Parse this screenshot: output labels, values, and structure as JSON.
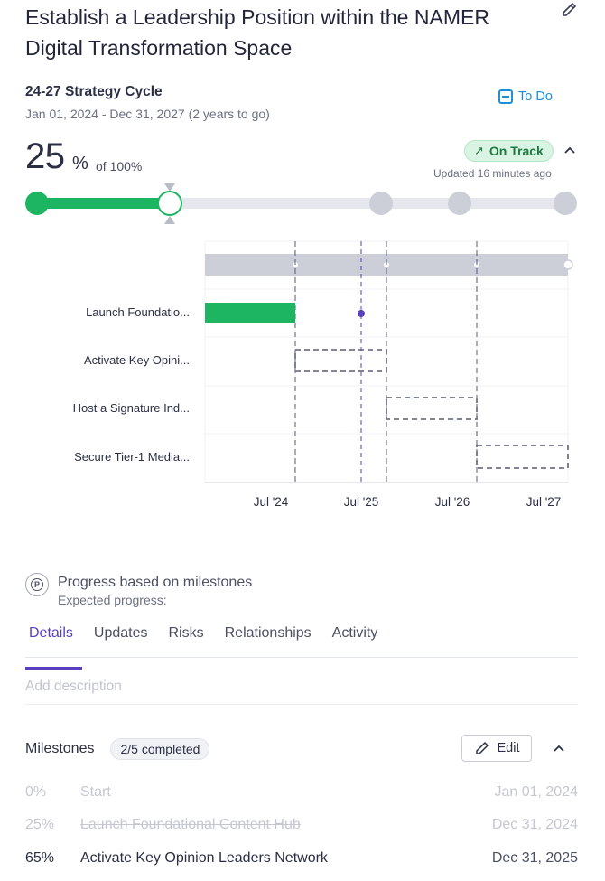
{
  "goal": {
    "title": "Establish a Leadership Position within the NAMER Digital Transformation Space"
  },
  "cycle": {
    "name": "24-27 Strategy Cycle",
    "dates": "Jan 01, 2024 - Dec 31, 2027 (2 years to go)",
    "todo_label": "To Do"
  },
  "progress": {
    "value": "25",
    "percent_sign": "%",
    "of_label": "of 100%",
    "fraction": 0.25,
    "status": "On Track",
    "status_icon": "arrow-up-right-icon",
    "updated": "Updated 16 minutes ago"
  },
  "colors": {
    "accent": "#5a3fc0",
    "progress_green": "#1db462",
    "status_bg": "#d9f4e2",
    "link_blue": "#1d8fd6",
    "track_grey": "#e6e7ee",
    "milestone_grey": "#ccced8"
  },
  "timeline": {
    "rows": [
      {
        "label": "Launch Foundatio...",
        "state": "complete"
      },
      {
        "label": "Activate Key Opini...",
        "state": "planned"
      },
      {
        "label": "Host a Signature Ind...",
        "state": "planned"
      },
      {
        "label": "Secure Tier-1 Media...",
        "state": "planned"
      }
    ],
    "ticks": [
      "Jul '24",
      "Jul '25",
      "Jul '26",
      "Jul '27"
    ]
  },
  "legend": {
    "title": "Progress based on milestones",
    "subtitle": "Expected progress:"
  },
  "tabs": [
    {
      "label": "Details",
      "active": true
    },
    {
      "label": "Updates",
      "active": false
    },
    {
      "label": "Risks",
      "active": false
    },
    {
      "label": "Relationships",
      "active": false
    },
    {
      "label": "Activity",
      "active": false
    }
  ],
  "description_placeholder": "Add description",
  "milestones": {
    "title": "Milestones",
    "count": "2/5 completed",
    "edit_label": "Edit",
    "items": [
      {
        "pct": "0%",
        "name": "Start",
        "date": "Jan 01, 2024",
        "done": true
      },
      {
        "pct": "25%",
        "name": "Launch Foundational Content Hub",
        "date": "Dec 31, 2024",
        "done": true
      },
      {
        "pct": "65%",
        "name": "Activate Key Opinion Leaders Network",
        "date": "Dec 31, 2025",
        "done": false
      }
    ]
  }
}
